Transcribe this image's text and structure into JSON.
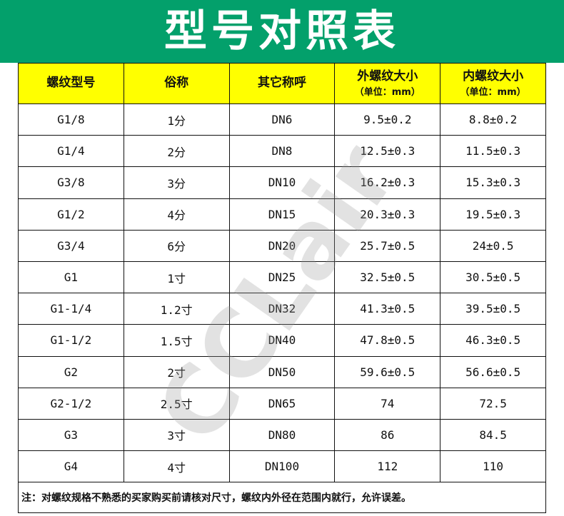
{
  "title": "型号对照表",
  "headers": [
    {
      "label": "螺纹型号",
      "sub": ""
    },
    {
      "label": "俗称",
      "sub": ""
    },
    {
      "label": "其它称呼",
      "sub": ""
    },
    {
      "label": "外螺纹大小",
      "sub": "（单位：mm）"
    },
    {
      "label": "内螺纹大小",
      "sub": "（单位：mm）"
    }
  ],
  "rows": [
    [
      "G1/8",
      "1分",
      "DN6",
      "9.5±0.2",
      "8.8±0.2"
    ],
    [
      "G1/4",
      "2分",
      "DN8",
      "12.5±0.3",
      "11.5±0.3"
    ],
    [
      "G3/8",
      "3分",
      "DN10",
      "16.2±0.3",
      "15.3±0.3"
    ],
    [
      "G1/2",
      "4分",
      "DN15",
      "20.3±0.3",
      "19.5±0.3"
    ],
    [
      "G3/4",
      "6分",
      "DN20",
      "25.7±0.5",
      "24±0.5"
    ],
    [
      "G1",
      "1寸",
      "DN25",
      "32.5±0.5",
      "30.5±0.5"
    ],
    [
      "G1-1/4",
      "1.2寸",
      "DN32",
      "41.3±0.5",
      "39.5±0.5"
    ],
    [
      "G1-1/2",
      "1.5寸",
      "DN40",
      "47.8±0.5",
      "46.3±0.5"
    ],
    [
      "G2",
      "2寸",
      "DN50",
      "59.6±0.5",
      "56.6±0.5"
    ],
    [
      "G2-1/2",
      "2.5寸",
      "DN65",
      "74",
      "72.5"
    ],
    [
      "G3",
      "3寸",
      "DN80",
      "86",
      "84.5"
    ],
    [
      "G4",
      "4寸",
      "DN100",
      "112",
      "110"
    ]
  ],
  "note": "注：对螺纹规格不熟悉的买家购买前请核对尺寸，螺纹内外径在范围内就行，允许误差。",
  "watermark": "CCLair",
  "colors": {
    "banner": "#03a06b",
    "header_bg": "#ffff00"
  }
}
